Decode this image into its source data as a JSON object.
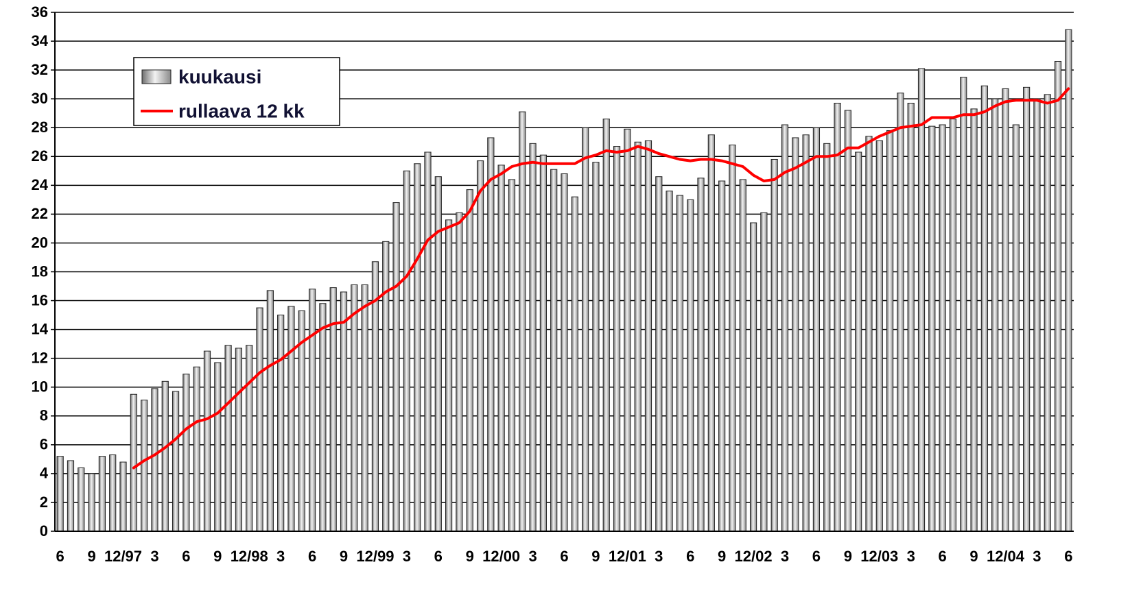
{
  "chart_data": {
    "type": "bar",
    "categories": [
      "6",
      null,
      null,
      "9",
      null,
      null,
      "12/97",
      null,
      null,
      "3",
      null,
      null,
      "6",
      null,
      null,
      "9",
      null,
      null,
      "12/98",
      null,
      null,
      "3",
      null,
      null,
      "6",
      null,
      null,
      "9",
      null,
      null,
      "12/99",
      null,
      null,
      "3",
      null,
      null,
      "6",
      null,
      null,
      "9",
      null,
      null,
      "12/00",
      null,
      null,
      "3",
      null,
      null,
      "6",
      null,
      null,
      "9",
      null,
      null,
      "12/01",
      null,
      null,
      "3",
      null,
      null,
      "6",
      null,
      null,
      "9",
      null,
      null,
      "12/02",
      null,
      null,
      "3",
      null,
      null,
      "6",
      null,
      null,
      "9",
      null,
      null,
      "12/03",
      null,
      null,
      "3",
      null,
      null,
      "6",
      null,
      null,
      "9",
      null,
      null,
      "12/04",
      null,
      null,
      "3",
      null,
      null,
      "6"
    ],
    "series": [
      {
        "name": "kuukausi",
        "type": "bar",
        "color": "#a6a6a6",
        "values": [
          5.2,
          4.9,
          4.4,
          4.0,
          5.2,
          5.3,
          4.8,
          9.5,
          9.1,
          9.9,
          10.4,
          9.7,
          10.9,
          11.4,
          12.5,
          11.7,
          12.9,
          12.7,
          12.9,
          15.5,
          16.7,
          15.0,
          15.6,
          15.3,
          16.8,
          15.8,
          16.9,
          16.6,
          17.1,
          17.1,
          18.7,
          20.1,
          22.8,
          25.0,
          25.5,
          26.3,
          24.6,
          21.6,
          22.1,
          23.7,
          25.7,
          27.3,
          25.4,
          24.4,
          29.1,
          26.9,
          26.1,
          25.1,
          24.8,
          23.2,
          28.0,
          25.6,
          28.6,
          26.7,
          27.9,
          27.0,
          27.1,
          24.6,
          23.6,
          23.3,
          23.0,
          24.5,
          27.5,
          24.3,
          26.8,
          24.4,
          21.4,
          22.1,
          25.8,
          28.2,
          27.3,
          27.5,
          28.0,
          26.9,
          29.7,
          29.2,
          26.3,
          27.4,
          27.1,
          27.8,
          30.4,
          29.7,
          32.1,
          28.1,
          28.2,
          28.6,
          31.5,
          29.3,
          30.9,
          30.0,
          30.7,
          28.2,
          30.8,
          30.0,
          30.3,
          32.6,
          34.8
        ]
      },
      {
        "name": "rullaava 12 kk",
        "type": "line",
        "color": "#ff0000",
        "values": [
          null,
          null,
          null,
          null,
          null,
          null,
          null,
          4.4,
          4.9,
          5.3,
          5.8,
          6.4,
          7.1,
          7.6,
          7.8,
          8.2,
          8.9,
          9.6,
          10.3,
          11.0,
          11.5,
          11.9,
          12.5,
          13.1,
          13.6,
          14.1,
          14.4,
          14.5,
          15.1,
          15.6,
          16.0,
          16.6,
          17.0,
          17.7,
          18.9,
          20.2,
          20.8,
          21.1,
          21.4,
          22.2,
          23.6,
          24.4,
          24.8,
          25.3,
          25.5,
          25.6,
          25.5,
          25.5,
          25.5,
          25.5,
          25.9,
          26.1,
          26.4,
          26.3,
          26.4,
          26.7,
          26.5,
          26.2,
          26.0,
          25.8,
          25.7,
          25.8,
          25.8,
          25.7,
          25.5,
          25.3,
          24.7,
          24.3,
          24.4,
          24.9,
          25.2,
          25.6,
          26.0,
          26.0,
          26.1,
          26.6,
          26.6,
          27.0,
          27.4,
          27.7,
          28.0,
          28.1,
          28.2,
          28.7,
          28.7,
          28.7,
          28.9,
          28.9,
          29.1,
          29.5,
          29.8,
          29.9,
          29.9,
          29.9,
          29.7,
          29.9,
          30.7
        ]
      }
    ],
    "ylim": [
      0,
      36
    ],
    "yticks": [
      0,
      2,
      4,
      6,
      8,
      10,
      12,
      14,
      16,
      18,
      20,
      22,
      24,
      26,
      28,
      30,
      32,
      34,
      36
    ],
    "grid": true,
    "legend": "upper left"
  }
}
